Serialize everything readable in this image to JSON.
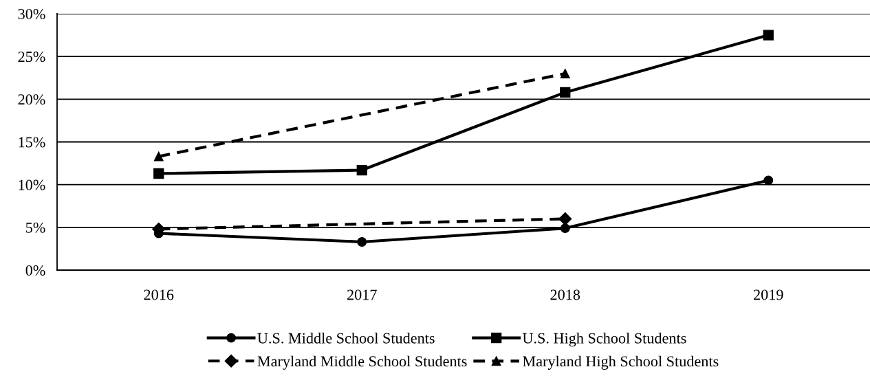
{
  "chart_data": {
    "type": "line",
    "categories": [
      "2016",
      "2017",
      "2018",
      "2019"
    ],
    "series": [
      {
        "name": "U.S. Middle School Students",
        "color": "#000000",
        "values": [
          4.3,
          3.3,
          4.9,
          10.5
        ],
        "marker": "circle",
        "line_style": "solid"
      },
      {
        "name": "U.S. High School Students",
        "color": "#000000",
        "values": [
          11.3,
          11.7,
          20.8,
          27.5
        ],
        "marker": "square",
        "line_style": "solid"
      },
      {
        "name": "Maryland Middle School Students",
        "color": "#000000",
        "values": [
          4.8,
          null,
          6.0,
          null
        ],
        "marker": "diamond",
        "line_style": "dashed"
      },
      {
        "name": "Maryland High School Students",
        "color": "#000000",
        "values": [
          13.3,
          null,
          23.0,
          null
        ],
        "marker": "triangle",
        "line_style": "dashed"
      }
    ],
    "ylim": [
      0,
      30
    ],
    "yticks": [
      {
        "value": 0,
        "label": "0%"
      },
      {
        "value": 5,
        "label": "5%"
      },
      {
        "value": 10,
        "label": "10%"
      },
      {
        "value": 15,
        "label": "15%"
      },
      {
        "value": 20,
        "label": "20%"
      },
      {
        "value": 25,
        "label": "25%"
      },
      {
        "value": 30,
        "label": "30%"
      }
    ],
    "grid": "y",
    "legend": "bottom"
  }
}
